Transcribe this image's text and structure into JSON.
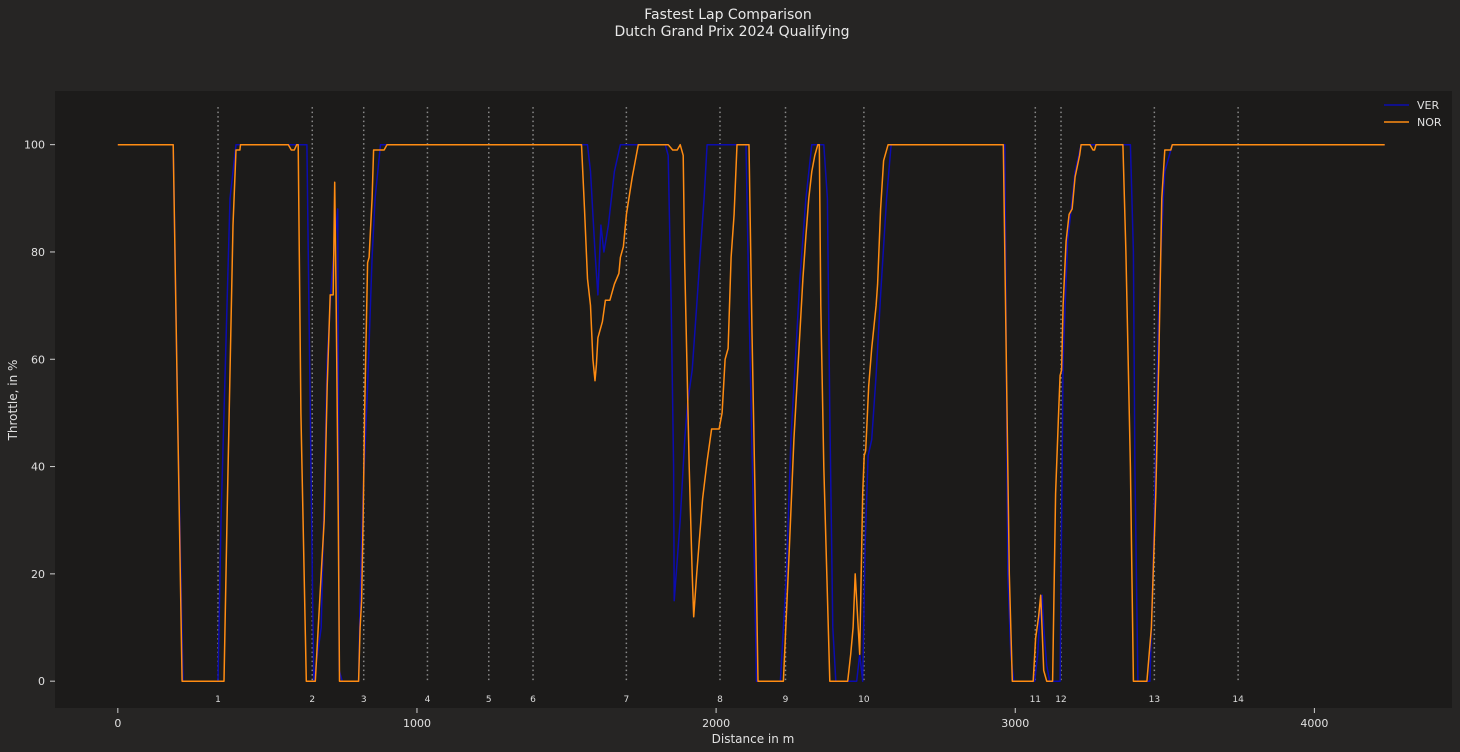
{
  "chart_data": {
    "type": "line",
    "title": "Fastest Lap Comparison",
    "subtitle": "Dutch Grand Prix 2024 Qualifying",
    "xlabel": "Distance in m",
    "ylabel": "Throttle, in %",
    "xlim": [
      -210,
      4460
    ],
    "ylim": [
      -5,
      110
    ],
    "xticks": [
      0,
      1000,
      2000,
      3000,
      4000
    ],
    "yticks": [
      0,
      20,
      40,
      60,
      80,
      100
    ],
    "grid": false,
    "legend_position": "top-right",
    "colors": {
      "background": "#262524",
      "plot_background": "#1c1b1a",
      "text": "#e0e0e0",
      "corner_line": "#8a8a8a"
    },
    "corners": [
      {
        "label": "1",
        "x": 335
      },
      {
        "label": "2",
        "x": 650
      },
      {
        "label": "3",
        "x": 822
      },
      {
        "label": "4",
        "x": 1035
      },
      {
        "label": "5",
        "x": 1240
      },
      {
        "label": "6",
        "x": 1388
      },
      {
        "label": "7",
        "x": 1700
      },
      {
        "label": "8",
        "x": 2013
      },
      {
        "label": "9",
        "x": 2232
      },
      {
        "label": "10",
        "x": 2494
      },
      {
        "label": "11",
        "x": 3067
      },
      {
        "label": "12",
        "x": 3153
      },
      {
        "label": "13",
        "x": 3465
      },
      {
        "label": "14",
        "x": 3745
      }
    ],
    "series": [
      {
        "name": "VER",
        "color": "#0c0cb0",
        "points": [
          [
            0,
            100
          ],
          [
            185,
            100
          ],
          [
            200,
            50
          ],
          [
            218,
            0
          ],
          [
            335,
            0
          ],
          [
            345,
            30
          ],
          [
            375,
            90
          ],
          [
            395,
            100
          ],
          [
            520,
            100
          ],
          [
            560,
            100
          ],
          [
            610,
            100
          ],
          [
            632,
            100
          ],
          [
            650,
            20
          ],
          [
            655,
            0
          ],
          [
            680,
            10
          ],
          [
            700,
            60
          ],
          [
            715,
            75
          ],
          [
            735,
            88
          ],
          [
            738,
            40
          ],
          [
            740,
            2
          ],
          [
            750,
            0
          ],
          [
            805,
            0
          ],
          [
            810,
            15
          ],
          [
            820,
            35
          ],
          [
            835,
            55
          ],
          [
            850,
            79
          ],
          [
            860,
            90
          ],
          [
            878,
            100
          ],
          [
            940,
            100
          ],
          [
            1000,
            100
          ],
          [
            1100,
            100
          ],
          [
            1200,
            100
          ],
          [
            1300,
            100
          ],
          [
            1400,
            100
          ],
          [
            1500,
            100
          ],
          [
            1570,
            100
          ],
          [
            1580,
            95
          ],
          [
            1595,
            80
          ],
          [
            1605,
            72
          ],
          [
            1615,
            85
          ],
          [
            1625,
            80
          ],
          [
            1640,
            85
          ],
          [
            1660,
            95
          ],
          [
            1680,
            100
          ],
          [
            1700,
            100
          ],
          [
            1790,
            100
          ],
          [
            1830,
            100
          ],
          [
            1840,
            98
          ],
          [
            1850,
            70
          ],
          [
            1858,
            40
          ],
          [
            1860,
            15
          ],
          [
            1880,
            30
          ],
          [
            1895,
            45
          ],
          [
            1905,
            52
          ],
          [
            1920,
            58
          ],
          [
            1935,
            70
          ],
          [
            1950,
            82
          ],
          [
            1960,
            90
          ],
          [
            1970,
            100
          ],
          [
            2090,
            100
          ],
          [
            2100,
            100
          ],
          [
            2110,
            70
          ],
          [
            2125,
            30
          ],
          [
            2135,
            0
          ],
          [
            2215,
            0
          ],
          [
            2235,
            20
          ],
          [
            2250,
            45
          ],
          [
            2265,
            60
          ],
          [
            2280,
            75
          ],
          [
            2300,
            90
          ],
          [
            2320,
            100
          ],
          [
            2360,
            100
          ],
          [
            2372,
            90
          ],
          [
            2380,
            50
          ],
          [
            2390,
            10
          ],
          [
            2400,
            0
          ],
          [
            2470,
            0
          ],
          [
            2480,
            5
          ],
          [
            2490,
            0
          ],
          [
            2498,
            25
          ],
          [
            2508,
            42
          ],
          [
            2520,
            45
          ],
          [
            2535,
            57
          ],
          [
            2550,
            72
          ],
          [
            2570,
            90
          ],
          [
            2585,
            100
          ],
          [
            2940,
            100
          ],
          [
            2965,
            100
          ],
          [
            2975,
            20
          ],
          [
            2985,
            5
          ],
          [
            2995,
            0
          ],
          [
            3065,
            0
          ],
          [
            3075,
            5
          ],
          [
            3082,
            12
          ],
          [
            3090,
            16
          ],
          [
            3095,
            10
          ],
          [
            3105,
            3
          ],
          [
            3115,
            0
          ],
          [
            3150,
            0
          ],
          [
            3160,
            60
          ],
          [
            3175,
            82
          ],
          [
            3185,
            87
          ],
          [
            3200,
            95
          ],
          [
            3220,
            100
          ],
          [
            3270,
            100
          ],
          [
            3320,
            100
          ],
          [
            3385,
            100
          ],
          [
            3395,
            80
          ],
          [
            3400,
            40
          ],
          [
            3410,
            0
          ],
          [
            3450,
            0
          ],
          [
            3460,
            20
          ],
          [
            3480,
            70
          ],
          [
            3495,
            90
          ],
          [
            3500,
            95
          ],
          [
            3525,
            100
          ],
          [
            4000,
            100
          ],
          [
            4235,
            100
          ]
        ]
      },
      {
        "name": "NOR",
        "color": "#ff8c12",
        "points": [
          [
            0,
            100
          ],
          [
            185,
            100
          ],
          [
            200,
            50
          ],
          [
            215,
            0
          ],
          [
            355,
            0
          ],
          [
            365,
            30
          ],
          [
            385,
            85
          ],
          [
            395,
            99
          ],
          [
            408,
            99
          ],
          [
            410,
            100
          ],
          [
            560,
            100
          ],
          [
            570,
            100
          ],
          [
            580,
            99
          ],
          [
            590,
            99
          ],
          [
            598,
            100
          ],
          [
            603,
            100
          ],
          [
            612,
            50
          ],
          [
            630,
            0
          ],
          [
            660,
            0
          ],
          [
            675,
            15
          ],
          [
            690,
            30
          ],
          [
            700,
            55
          ],
          [
            710,
            72
          ],
          [
            720,
            72
          ],
          [
            725,
            93
          ],
          [
            730,
            70
          ],
          [
            737,
            30
          ],
          [
            741,
            0
          ],
          [
            805,
            0
          ],
          [
            810,
            10
          ],
          [
            815,
            15
          ],
          [
            820,
            30
          ],
          [
            825,
            50
          ],
          [
            835,
            78
          ],
          [
            840,
            79
          ],
          [
            850,
            90
          ],
          [
            855,
            99
          ],
          [
            890,
            99
          ],
          [
            900,
            100
          ],
          [
            940,
            100
          ],
          [
            1000,
            100
          ],
          [
            1100,
            100
          ],
          [
            1200,
            100
          ],
          [
            1300,
            100
          ],
          [
            1400,
            100
          ],
          [
            1500,
            100
          ],
          [
            1550,
            100
          ],
          [
            1560,
            88
          ],
          [
            1570,
            75
          ],
          [
            1580,
            70
          ],
          [
            1588,
            60
          ],
          [
            1595,
            56
          ],
          [
            1600,
            59
          ],
          [
            1605,
            64
          ],
          [
            1620,
            67
          ],
          [
            1630,
            71
          ],
          [
            1645,
            71
          ],
          [
            1660,
            74
          ],
          [
            1675,
            76
          ],
          [
            1680,
            79
          ],
          [
            1690,
            81
          ],
          [
            1700,
            87
          ],
          [
            1720,
            94
          ],
          [
            1740,
            100
          ],
          [
            1780,
            100
          ],
          [
            1840,
            100
          ],
          [
            1855,
            99
          ],
          [
            1870,
            99
          ],
          [
            1880,
            100
          ],
          [
            1890,
            98
          ],
          [
            1895,
            78
          ],
          [
            1910,
            40
          ],
          [
            1920,
            20
          ],
          [
            1925,
            12
          ],
          [
            1935,
            20
          ],
          [
            1955,
            34
          ],
          [
            1970,
            41
          ],
          [
            1985,
            47
          ],
          [
            2000,
            47
          ],
          [
            2010,
            47
          ],
          [
            2020,
            50
          ],
          [
            2030,
            60
          ],
          [
            2040,
            62
          ],
          [
            2050,
            79
          ],
          [
            2060,
            87
          ],
          [
            2070,
            100
          ],
          [
            2100,
            100
          ],
          [
            2110,
            100
          ],
          [
            2120,
            65
          ],
          [
            2130,
            35
          ],
          [
            2140,
            0
          ],
          [
            2225,
            0
          ],
          [
            2245,
            25
          ],
          [
            2260,
            45
          ],
          [
            2275,
            60
          ],
          [
            2290,
            75
          ],
          [
            2300,
            83
          ],
          [
            2310,
            90
          ],
          [
            2320,
            95
          ],
          [
            2330,
            98
          ],
          [
            2340,
            100
          ],
          [
            2345,
            100
          ],
          [
            2350,
            70
          ],
          [
            2360,
            40
          ],
          [
            2370,
            20
          ],
          [
            2380,
            0
          ],
          [
            2440,
            0
          ],
          [
            2450,
            5
          ],
          [
            2458,
            10
          ],
          [
            2465,
            20
          ],
          [
            2470,
            15
          ],
          [
            2480,
            5
          ],
          [
            2490,
            35
          ],
          [
            2495,
            42
          ],
          [
            2500,
            43
          ],
          [
            2510,
            55
          ],
          [
            2520,
            62
          ],
          [
            2535,
            70
          ],
          [
            2540,
            74
          ],
          [
            2550,
            88
          ],
          [
            2560,
            97
          ],
          [
            2575,
            100
          ],
          [
            2620,
            100
          ],
          [
            2700,
            100
          ],
          [
            2800,
            100
          ],
          [
            2900,
            100
          ],
          [
            2960,
            100
          ],
          [
            2970,
            60
          ],
          [
            2980,
            20
          ],
          [
            2990,
            0
          ],
          [
            3060,
            0
          ],
          [
            3068,
            8
          ],
          [
            3078,
            12
          ],
          [
            3085,
            16
          ],
          [
            3088,
            12
          ],
          [
            3095,
            2
          ],
          [
            3105,
            0
          ],
          [
            3125,
            0
          ],
          [
            3135,
            35
          ],
          [
            3145,
            50
          ],
          [
            3150,
            57
          ],
          [
            3155,
            58
          ],
          [
            3160,
            70
          ],
          [
            3170,
            82
          ],
          [
            3180,
            87
          ],
          [
            3190,
            88
          ],
          [
            3200,
            94
          ],
          [
            3215,
            98
          ],
          [
            3220,
            100
          ],
          [
            3245,
            100
          ],
          [
            3250,
            100
          ],
          [
            3260,
            99
          ],
          [
            3265,
            99
          ],
          [
            3270,
            100
          ],
          [
            3280,
            100
          ],
          [
            3340,
            100
          ],
          [
            3360,
            100
          ],
          [
            3370,
            80
          ],
          [
            3385,
            40
          ],
          [
            3395,
            0
          ],
          [
            3440,
            0
          ],
          [
            3455,
            10
          ],
          [
            3470,
            35
          ],
          [
            3480,
            60
          ],
          [
            3490,
            90
          ],
          [
            3500,
            99
          ],
          [
            3520,
            99
          ],
          [
            3525,
            100
          ],
          [
            4000,
            100
          ],
          [
            4235,
            100
          ]
        ]
      }
    ]
  }
}
